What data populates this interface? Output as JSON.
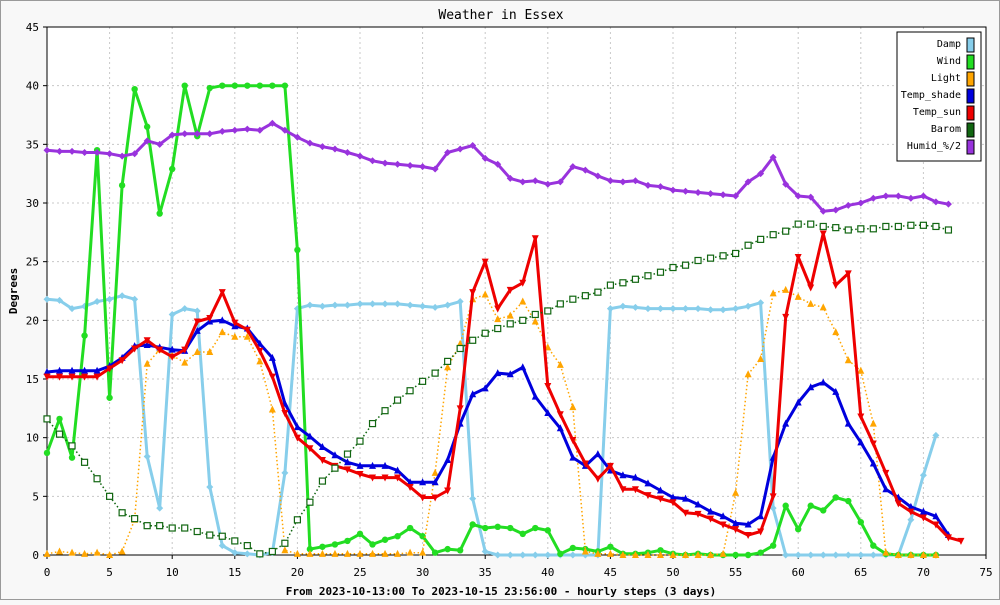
{
  "chart_data": {
    "type": "line",
    "title": "Weather in Essex",
    "ylabel": "Degrees",
    "xlabel": "From 2023-10-13:00 To 2023-10-15 23:56:00 - hourly steps (3 days)",
    "xlim": [
      0,
      75
    ],
    "ylim": [
      0,
      45
    ],
    "x_ticks": [
      0,
      5,
      10,
      15,
      20,
      25,
      30,
      35,
      40,
      45,
      50,
      55,
      60,
      65,
      70,
      75
    ],
    "y_ticks": [
      0,
      5,
      10,
      15,
      20,
      25,
      30,
      35,
      40,
      45
    ],
    "grid": true,
    "legend_position": "top-right",
    "series": [
      {
        "name": "Damp",
        "color": "#87ceeb",
        "marker": "diamond",
        "dotted": false,
        "values": [
          21.8,
          21.7,
          21.0,
          21.2,
          21.6,
          21.8,
          22.1,
          21.8,
          8.4,
          4.0,
          20.5,
          21.0,
          20.8,
          5.8,
          0.8,
          0.2,
          0.1,
          0.0,
          0.2,
          7.0,
          21.0,
          21.3,
          21.2,
          21.3,
          21.3,
          21.4,
          21.4,
          21.4,
          21.4,
          21.3,
          21.2,
          21.1,
          21.3,
          21.6,
          4.8,
          0.3,
          0.0,
          0.0,
          0.0,
          0.0,
          0.0,
          0.0,
          0.0,
          0.0,
          0.0,
          21.0,
          21.2,
          21.1,
          21.0,
          21.0,
          21.0,
          21.0,
          21.0,
          20.9,
          20.9,
          21.0,
          21.2,
          21.5,
          4.0,
          0.0,
          0.0,
          0.0,
          0.0,
          0.0,
          0.0,
          0.0,
          0.0,
          0.0,
          0.0,
          3.0,
          6.8,
          10.2
        ]
      },
      {
        "name": "Wind",
        "color": "#22dd22",
        "marker": "circle",
        "dotted": false,
        "values": [
          8.7,
          11.6,
          8.3,
          18.7,
          34.5,
          13.4,
          31.5,
          39.7,
          36.5,
          29.1,
          32.9,
          40.0,
          35.7,
          39.8,
          40.0,
          40.0,
          40.0,
          40.0,
          40.0,
          40.0,
          26.0,
          0.5,
          0.7,
          0.9,
          1.2,
          1.8,
          0.9,
          1.3,
          1.6,
          2.3,
          1.6,
          0.2,
          0.5,
          0.4,
          2.6,
          2.3,
          2.4,
          2.3,
          1.8,
          2.3,
          2.1,
          0.1,
          0.6,
          0.5,
          0.3,
          0.7,
          0.1,
          0.1,
          0.2,
          0.4,
          0.1,
          0.0,
          0.1,
          0.0,
          0.0,
          0.0,
          0.0,
          0.2,
          0.8,
          4.2,
          2.2,
          4.2,
          3.8,
          4.9,
          4.6,
          2.8,
          0.8,
          0.1,
          0.0,
          0.0,
          0.0,
          0.0
        ]
      },
      {
        "name": "Light",
        "color": "#ffa500",
        "marker": "triangle",
        "dotted": true,
        "values": [
          0.1,
          0.3,
          0.2,
          0.1,
          0.2,
          0.0,
          0.3,
          3.0,
          16.3,
          17.5,
          17.0,
          16.4,
          17.3,
          17.3,
          19.0,
          18.6,
          18.6,
          16.5,
          12.4,
          0.4,
          0.1,
          0.1,
          0.1,
          0.1,
          0.1,
          0.1,
          0.1,
          0.1,
          0.1,
          0.2,
          0.2,
          7.0,
          16.0,
          18.0,
          21.8,
          22.2,
          20.1,
          20.4,
          21.6,
          19.9,
          17.7,
          16.2,
          12.6,
          0.3,
          0.1,
          0.1,
          0.0,
          0.0,
          0.0,
          0.0,
          0.0,
          0.0,
          0.0,
          0.0,
          0.1,
          5.3,
          15.4,
          16.7,
          22.3,
          22.6,
          22.0,
          21.4,
          21.1,
          19.0,
          16.6,
          15.7,
          11.2,
          0.2,
          0.0,
          0.0,
          0.0,
          0.0
        ]
      },
      {
        "name": "Temp_shade",
        "color": "#0000dd",
        "marker": "triangle",
        "dotted": false,
        "values": [
          15.6,
          15.7,
          15.7,
          15.7,
          15.7,
          16.1,
          16.8,
          17.8,
          17.9,
          17.7,
          17.5,
          17.4,
          19.1,
          19.9,
          20.0,
          19.5,
          19.3,
          18.0,
          16.8,
          12.9,
          10.9,
          10.1,
          9.2,
          8.5,
          7.9,
          7.6,
          7.6,
          7.6,
          7.2,
          6.2,
          6.2,
          6.2,
          8.1,
          11.2,
          13.7,
          14.2,
          15.5,
          15.4,
          16.0,
          13.5,
          12.1,
          10.8,
          8.3,
          7.6,
          8.6,
          7.2,
          6.8,
          6.6,
          6.1,
          5.5,
          4.9,
          4.8,
          4.3,
          3.7,
          3.3,
          2.7,
          2.6,
          3.3,
          8.3,
          11.2,
          13.0,
          14.3,
          14.7,
          13.9,
          11.2,
          9.6,
          7.8,
          5.6,
          4.9,
          4.1,
          3.7,
          3.3,
          1.7
        ]
      },
      {
        "name": "Temp_sun",
        "color": "#ee0000",
        "marker": "triangle-down",
        "dotted": false,
        "values": [
          15.2,
          15.2,
          15.2,
          15.2,
          15.2,
          15.9,
          16.6,
          17.6,
          18.3,
          17.5,
          16.9,
          17.5,
          19.9,
          20.2,
          22.4,
          19.8,
          19.2,
          17.4,
          15.2,
          12.1,
          10.0,
          9.1,
          8.1,
          7.6,
          7.3,
          6.9,
          6.6,
          6.6,
          6.6,
          5.8,
          4.9,
          4.9,
          5.5,
          12.5,
          22.4,
          25.0,
          21.0,
          22.6,
          23.2,
          27.0,
          14.4,
          12.0,
          9.8,
          7.8,
          6.5,
          7.6,
          5.6,
          5.6,
          5.1,
          4.8,
          4.5,
          3.6,
          3.5,
          3.1,
          2.6,
          2.2,
          1.7,
          2.0,
          5.0,
          20.3,
          25.4,
          22.8,
          27.4,
          23.0,
          24.0,
          11.8,
          9.5,
          7.0,
          4.4,
          3.7,
          3.2,
          2.6,
          1.5,
          1.2
        ]
      },
      {
        "name": "Barom",
        "color": "#116611",
        "marker": "square",
        "dotted": true,
        "values": [
          11.6,
          10.3,
          9.3,
          7.9,
          6.5,
          5.0,
          3.6,
          3.1,
          2.5,
          2.5,
          2.3,
          2.3,
          2.0,
          1.7,
          1.6,
          1.2,
          0.8,
          0.1,
          0.3,
          1.0,
          3.0,
          4.5,
          6.3,
          7.4,
          8.6,
          9.7,
          11.2,
          12.3,
          13.2,
          14.0,
          14.8,
          15.5,
          16.5,
          17.6,
          18.3,
          18.9,
          19.3,
          19.7,
          20.0,
          20.5,
          20.8,
          21.4,
          21.8,
          22.1,
          22.4,
          23.0,
          23.2,
          23.5,
          23.8,
          24.1,
          24.5,
          24.7,
          25.1,
          25.3,
          25.5,
          25.7,
          26.4,
          26.9,
          27.3,
          27.6,
          28.2,
          28.2,
          28.0,
          27.9,
          27.7,
          27.8,
          27.8,
          28.0,
          28.0,
          28.1,
          28.1,
          28.0,
          27.7
        ]
      },
      {
        "name": "Humid_%/2",
        "color": "#9933dd",
        "marker": "diamond",
        "dotted": false,
        "values": [
          34.5,
          34.4,
          34.4,
          34.3,
          34.3,
          34.2,
          34.0,
          34.2,
          35.3,
          35.0,
          35.8,
          35.9,
          35.9,
          35.9,
          36.1,
          36.2,
          36.3,
          36.2,
          36.8,
          36.2,
          35.6,
          35.1,
          34.8,
          34.6,
          34.3,
          34.0,
          33.6,
          33.4,
          33.3,
          33.2,
          33.1,
          32.9,
          34.3,
          34.6,
          34.9,
          33.8,
          33.3,
          32.1,
          31.8,
          31.9,
          31.6,
          31.8,
          33.1,
          32.8,
          32.3,
          31.9,
          31.8,
          31.9,
          31.5,
          31.4,
          31.1,
          31.0,
          30.9,
          30.8,
          30.7,
          30.6,
          31.8,
          32.5,
          33.9,
          31.6,
          30.6,
          30.5,
          29.3,
          29.4,
          29.8,
          30.0,
          30.4,
          30.6,
          30.6,
          30.4,
          30.6,
          30.1,
          29.9
        ]
      }
    ]
  }
}
